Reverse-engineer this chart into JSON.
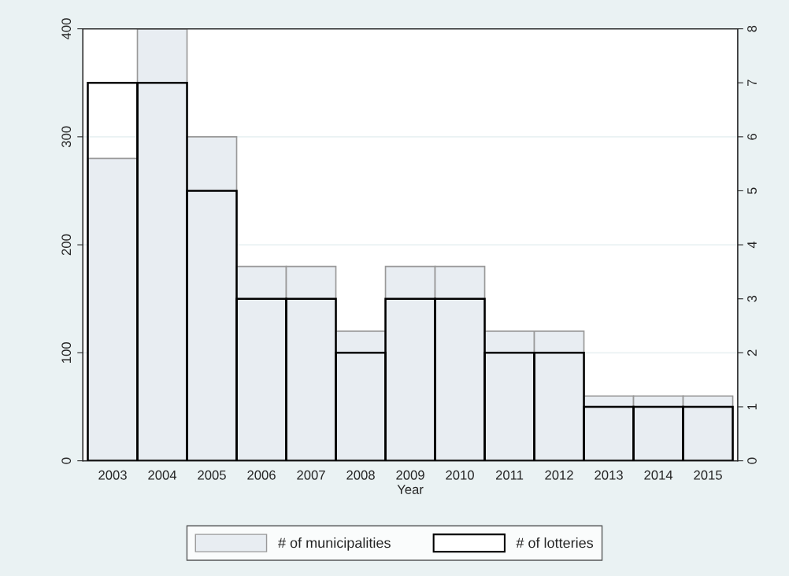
{
  "chart_data": {
    "type": "bar",
    "xlabel": "Year",
    "categories": [
      "2003",
      "2004",
      "2005",
      "2006",
      "2007",
      "2008",
      "2009",
      "2010",
      "2011",
      "2012",
      "2013",
      "2014",
      "2015"
    ],
    "series": [
      {
        "name": "# of municipalities",
        "color": "#e8edf2",
        "values": [
          280,
          400,
          300,
          180,
          180,
          120,
          180,
          180,
          120,
          120,
          60,
          60,
          60
        ]
      },
      {
        "name": "# of lotteries",
        "color": "#000000",
        "axis": "y2",
        "values": [
          7,
          7,
          5,
          3,
          3,
          2,
          3,
          3,
          2,
          2,
          1,
          1,
          1
        ]
      }
    ],
    "ylim": [
      0,
      400
    ],
    "yticks": [
      0,
      100,
      200,
      300,
      400
    ],
    "y2lim": [
      0,
      8
    ],
    "y2ticks": [
      0,
      1,
      2,
      3,
      4,
      5,
      6,
      7,
      8
    ],
    "grid": "y",
    "legend": "bottom"
  }
}
